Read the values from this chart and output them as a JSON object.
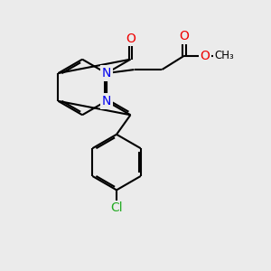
{
  "background_color": "#ebebeb",
  "bond_color": "#000000",
  "bond_width": 1.5,
  "dbo": 0.09,
  "atom_colors": {
    "N": "#0000ee",
    "O": "#ee0000",
    "Cl": "#22aa22",
    "C": "#000000"
  },
  "font_size": 10,
  "fig_size": [
    3.0,
    3.0
  ],
  "dpi": 100
}
